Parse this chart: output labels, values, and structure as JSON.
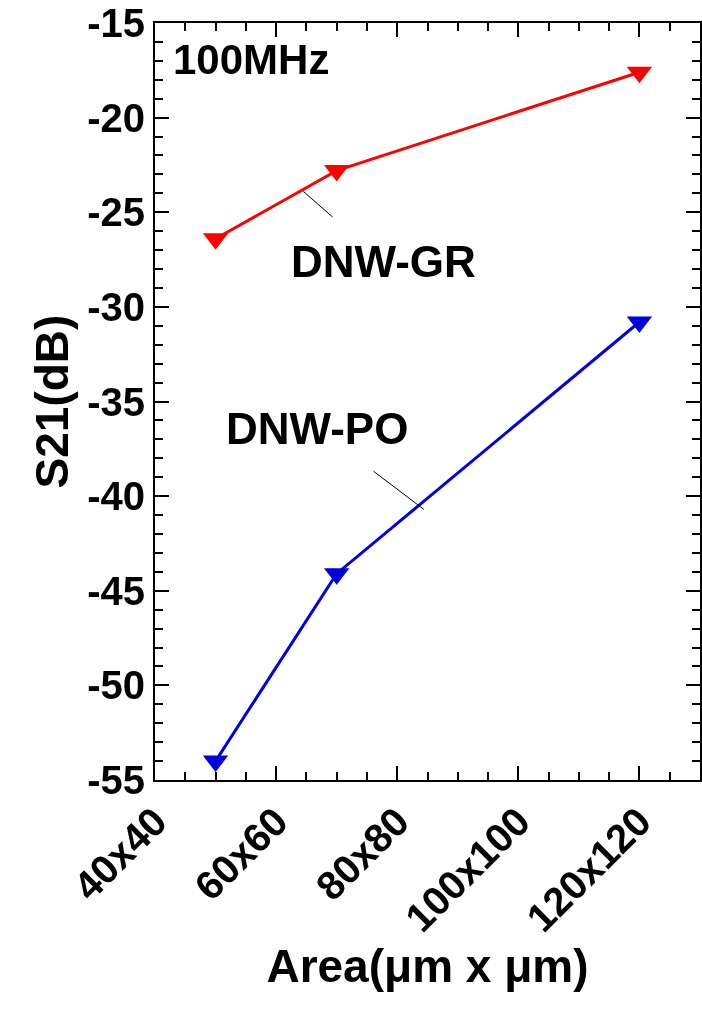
{
  "chart_data": {
    "type": "line",
    "xlabel": "Area(μm x μm)",
    "ylabel": "S21(dB)",
    "annotations": [
      "100MHz"
    ],
    "categories": [
      "40x40",
      null,
      null,
      null,
      "60x60",
      null,
      null,
      null,
      "80x80",
      null,
      null,
      null,
      "100x100",
      null,
      null,
      null,
      "120x120",
      null,
      null
    ],
    "series": [
      {
        "name": "DNW-GR",
        "color": "#ff0000",
        "values": [
          null,
          null,
          -26.4,
          null,
          null,
          null,
          -22.8,
          null,
          null,
          null,
          null,
          null,
          null,
          null,
          null,
          null,
          -17.6,
          null,
          null
        ]
      },
      {
        "name": "DNW-PO",
        "color": "#0000dd",
        "values": [
          null,
          null,
          -54,
          null,
          null,
          null,
          -44.1,
          null,
          null,
          null,
          null,
          null,
          null,
          null,
          null,
          null,
          -30.8,
          null,
          null
        ]
      }
    ],
    "ylim": [
      -55,
      -15
    ],
    "yticks": [
      -55,
      -50,
      -45,
      -40,
      -35,
      -30,
      -25,
      -20,
      -15
    ],
    "grid": false,
    "legend": false,
    "marker": "triangle",
    "line_style": "solid"
  }
}
